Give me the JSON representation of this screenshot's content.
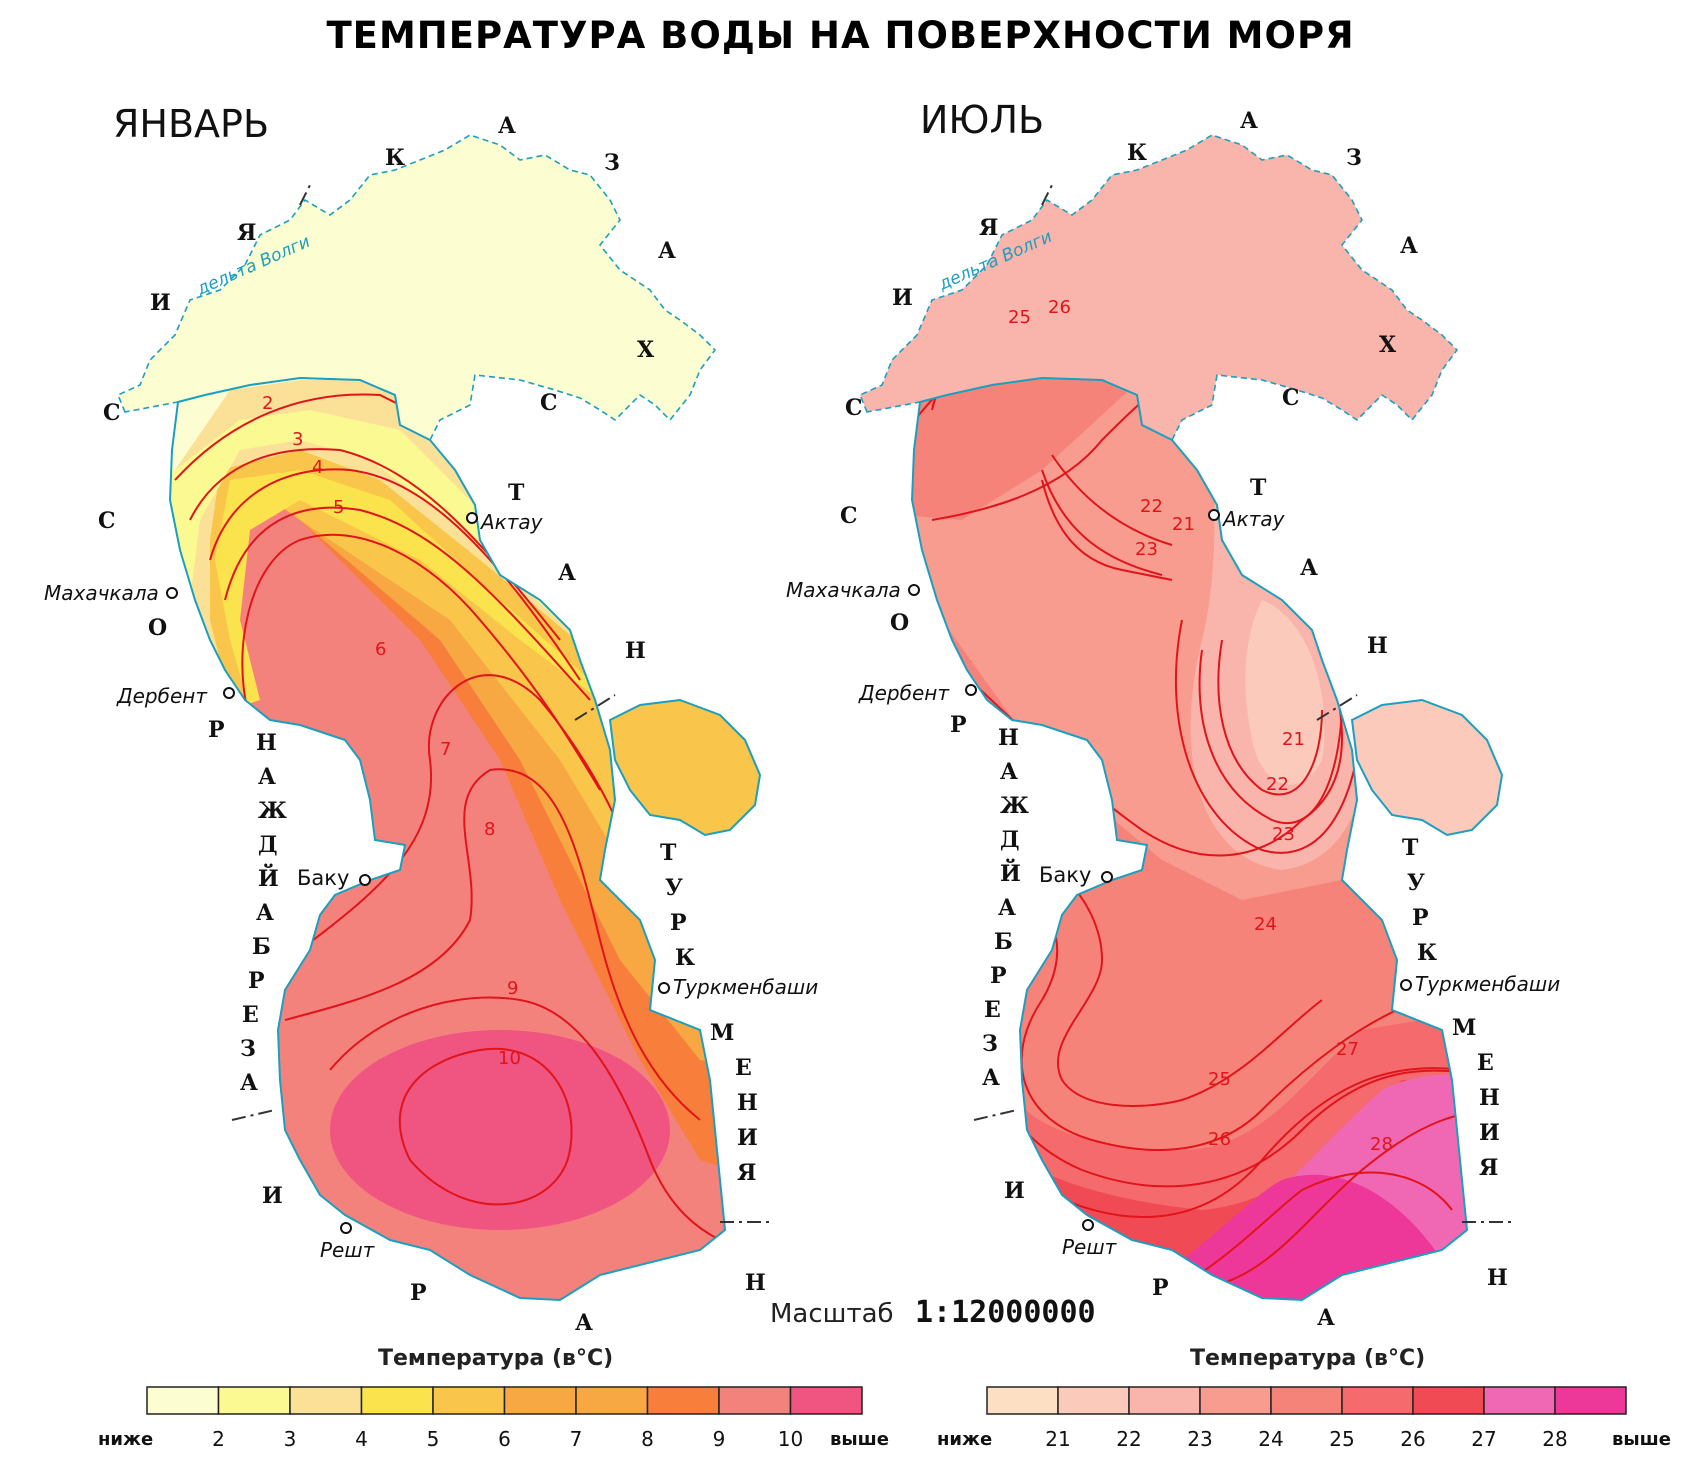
{
  "title": "ТЕМПЕРАТУРА ВОДЫ НА ПОВЕРХНОСТИ МОРЯ",
  "january": {
    "month_label": "ЯНВАРЬ",
    "delta_label": "дельта Волги",
    "cities": {
      "aktau": "Актау",
      "makhachkala": "Махачкала",
      "derbent": "Дербент",
      "baku": "Баку",
      "turkmenbashi": "Туркменбаши",
      "resht": "Решт"
    },
    "isotherm_labels": {
      "t2": "2",
      "t3": "3",
      "t4": "4",
      "t5": "5",
      "t6": "6",
      "t7": "7",
      "t8": "8",
      "t9": "9",
      "t10": "10"
    },
    "legend": {
      "title": "Температура (в°С)",
      "below": "ниже",
      "above": "выше",
      "ticks": [
        "2",
        "3",
        "4",
        "5",
        "6",
        "7",
        "8",
        "9",
        "10"
      ],
      "colors": [
        "#fdfdd2",
        "#fbfa92",
        "#fbe197",
        "#fbe34d",
        "#f9c54a",
        "#f8a842",
        "#f8a842",
        "#f77f3b",
        "#f4827c",
        "#f05480"
      ]
    }
  },
  "july": {
    "month_label": "ИЮЛЬ",
    "delta_label": "дельта Волги",
    "cities": {
      "aktau": "Актау",
      "makhachkala": "Махачкала",
      "derbent": "Дербент",
      "baku": "Баку",
      "turkmenbashi": "Туркменбаши",
      "resht": "Решт"
    },
    "isotherm_labels": {
      "t21a": "21",
      "t22a": "22",
      "t23a": "23",
      "t21b": "21",
      "t22b": "22",
      "t23b": "23",
      "t24": "24",
      "t25a": "25",
      "t26a": "26",
      "t25b": "25",
      "t26b": "26",
      "t27": "27",
      "t28": "28"
    },
    "legend": {
      "title": "Температура (в°С)",
      "below": "ниже",
      "above": "выше",
      "ticks": [
        "21",
        "22",
        "23",
        "24",
        "25",
        "26",
        "27",
        "28"
      ],
      "colors": [
        "#fde0c4",
        "#fbcabb",
        "#f9b5ac",
        "#f79c8e",
        "#f6837a",
        "#f56a6d",
        "#f04a55",
        "#f068b4",
        "#ee3899"
      ]
    }
  },
  "countries": {
    "kazakhstan": [
      "К",
      "А",
      "З",
      "А",
      "Х",
      "С",
      "Т",
      "А",
      "Н"
    ],
    "russia": [
      "Р",
      "О",
      "С",
      "С",
      "И",
      "Я"
    ],
    "azerbaijan": [
      "А",
      "З",
      "Е",
      "Р",
      "Б",
      "А",
      "Й",
      "Д",
      "Ж",
      "А",
      "Н"
    ],
    "turkmenistan": [
      "Т",
      "У",
      "Р",
      "К",
      "М",
      "Е",
      "Н",
      "И",
      "Я"
    ],
    "iran": [
      "И",
      "Р",
      "А",
      "Н"
    ]
  },
  "scale": {
    "label": "Масштаб",
    "value": "1:12000000"
  }
}
